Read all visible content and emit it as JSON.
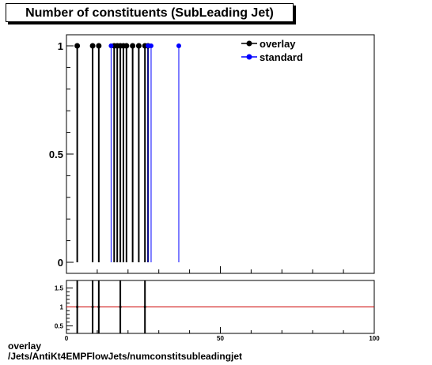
{
  "chart_data": [
    {
      "type": "scatter",
      "title": "Number of constituents (SubLeading Jet)",
      "xlim": [
        0,
        100
      ],
      "ylim": [
        0,
        1.05
      ],
      "y_ticks": [
        0,
        0.5,
        1
      ],
      "y_tick_labels": [
        "0",
        "0.5",
        "1"
      ],
      "legend_position": "top-right",
      "series": [
        {
          "name": "overlay",
          "color": "#000000",
          "x": [
            3.5,
            8.5,
            10.5,
            15.5,
            16.5,
            17.5,
            18.5,
            19.5,
            21.5,
            23.5,
            25.5,
            26.5
          ],
          "y": [
            1,
            1,
            1,
            1,
            1,
            1,
            1,
            1,
            1,
            1,
            1,
            1
          ]
        },
        {
          "name": "standard",
          "color": "#0000ff",
          "x": [
            14.5,
            26.5,
            27.5,
            36.5
          ],
          "y": [
            1,
            1,
            1,
            1
          ]
        }
      ]
    },
    {
      "type": "line",
      "xlim": [
        0,
        100
      ],
      "ylim": [
        0.3,
        1.7
      ],
      "x_ticks": [
        0,
        50,
        100
      ],
      "x_tick_labels": [
        "0",
        "50",
        "100"
      ],
      "y_ticks": [
        0.5,
        1,
        1.5
      ],
      "y_tick_labels": [
        "0.5",
        "1",
        "1.5"
      ],
      "reference_line": {
        "y": 1,
        "color": "#cc0000"
      },
      "series": [
        {
          "name": "",
          "color": "#000000",
          "x": [
            3.5,
            8.5,
            10.5,
            17.5,
            25.5
          ],
          "y": [
            1,
            1,
            1,
            1,
            1
          ]
        }
      ]
    }
  ],
  "footer": {
    "line1": "overlay",
    "line2": "/Jets/AntiKt4EMPFlowJets/numconstitsubleadingjet"
  }
}
